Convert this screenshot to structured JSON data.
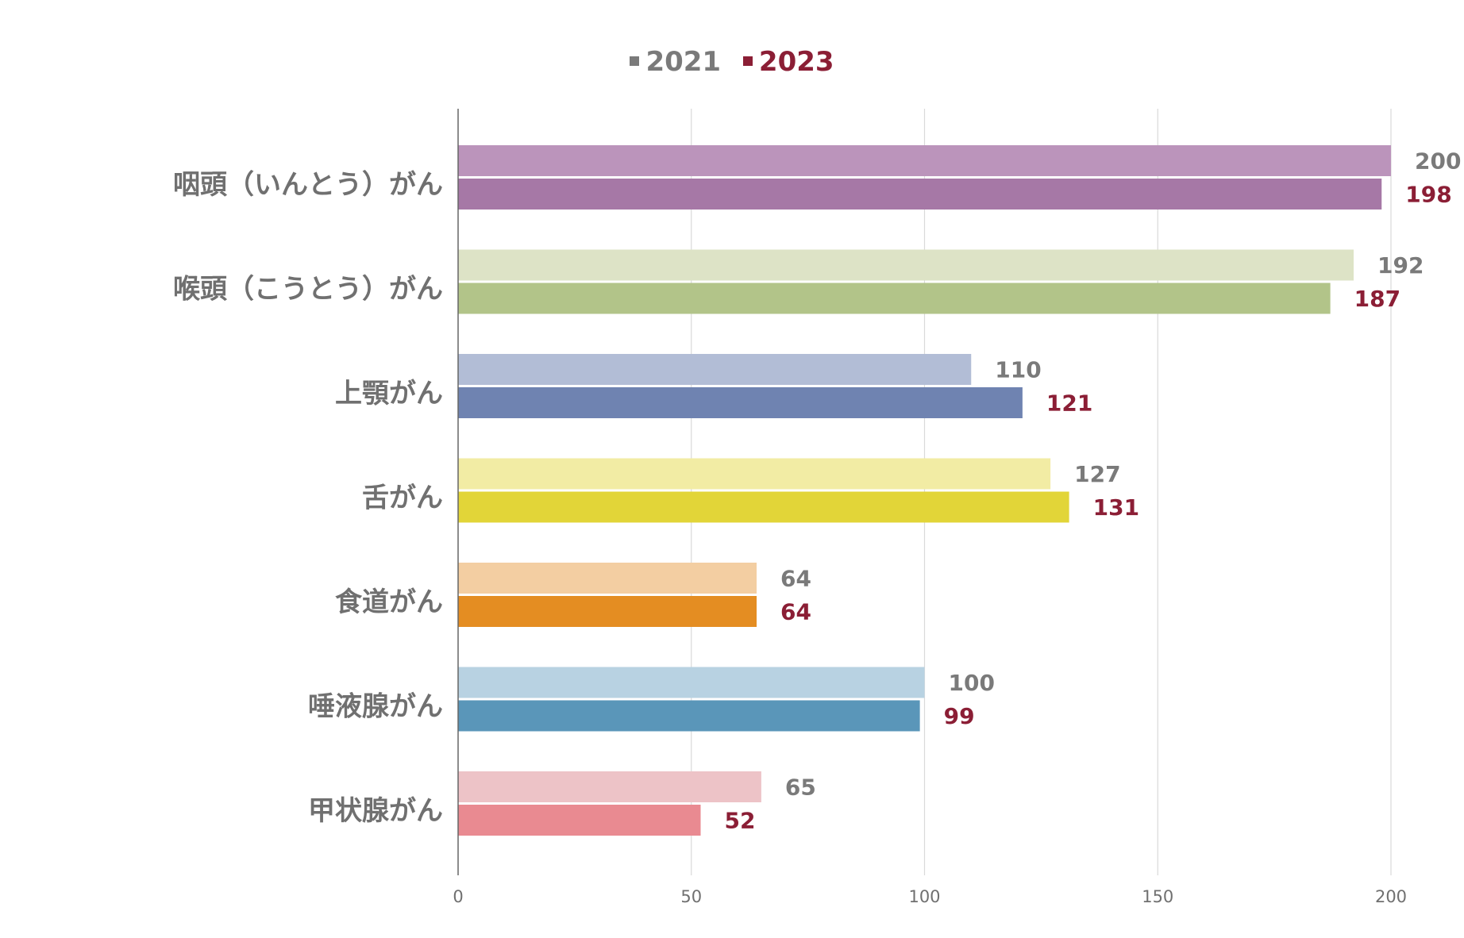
{
  "legend": {
    "series_a": "2021",
    "series_b": "2023"
  },
  "colors": {
    "series_a_label": "#7a7a7a",
    "series_b_label": "#8b1e35",
    "grid": "#d9d9d9",
    "axis": "#666666"
  },
  "chart_data": {
    "type": "bar",
    "orientation": "horizontal",
    "title": "",
    "xlabel": "",
    "ylabel": "",
    "xlim": [
      0,
      200
    ],
    "x_ticks": [
      0,
      50,
      100,
      150,
      200
    ],
    "grid": true,
    "legend_position": "top-center",
    "categories": [
      "咽頭（いんとう）がん",
      "喉頭（こうとう）がん",
      "上顎がん",
      "舌がん",
      "食道がん",
      "唾液腺がん",
      "甲状腺がん"
    ],
    "series": [
      {
        "name": "2021",
        "values": [
          200,
          192,
          110,
          127,
          64,
          100,
          65
        ]
      },
      {
        "name": "2023",
        "values": [
          198,
          187,
          121,
          131,
          64,
          99,
          52
        ]
      }
    ],
    "bar_colors": [
      [
        "#bb94bb",
        "#a678a6"
      ],
      [
        "#dde3c6",
        "#b2c489"
      ],
      [
        "#b2bdd6",
        "#6f83b1"
      ],
      [
        "#f2eca4",
        "#e2d538"
      ],
      [
        "#f3cea2",
        "#e48d22"
      ],
      [
        "#b8d2e2",
        "#5a96b9"
      ],
      [
        "#edc3c7",
        "#e98a91"
      ]
    ]
  }
}
